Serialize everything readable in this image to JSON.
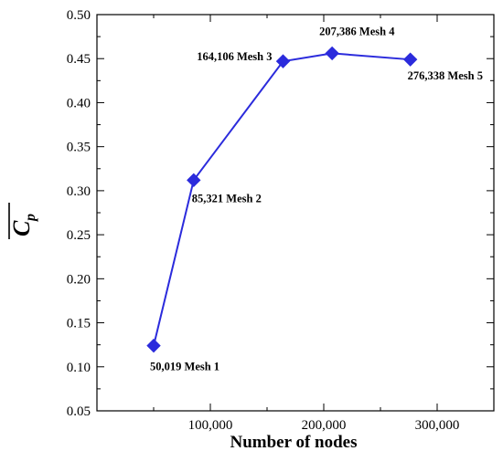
{
  "chart_data": {
    "type": "line",
    "xlabel": "Number of nodes",
    "ylabel": {
      "symbol": "C",
      "subscript": "p"
    },
    "xlim": [
      0,
      350000
    ],
    "ylim": [
      0.05,
      0.5
    ],
    "xticks": [
      100000,
      200000,
      300000
    ],
    "xtick_labels": [
      "100,000",
      "200,000",
      "300,000"
    ],
    "yticks": [
      0.05,
      0.1,
      0.15,
      0.2,
      0.25,
      0.3,
      0.35,
      0.4,
      0.45,
      0.5
    ],
    "ytick_labels": [
      "0.05",
      "0.10",
      "0.15",
      "0.20",
      "0.25",
      "0.30",
      "0.35",
      "0.40",
      "0.45",
      "0.50"
    ],
    "grid": false,
    "series": [
      {
        "color": "#2b2bdc",
        "marker": "diamond",
        "x": [
          50019,
          85321,
          164106,
          207386,
          276338
        ],
        "y": [
          0.124,
          0.312,
          0.447,
          0.456,
          0.449
        ]
      }
    ],
    "annotations": [
      "50,019 Mesh 1",
      "85,321 Mesh 2",
      "164,106 Mesh 3",
      "207,386 Mesh 4",
      "276,338 Mesh 5"
    ]
  }
}
